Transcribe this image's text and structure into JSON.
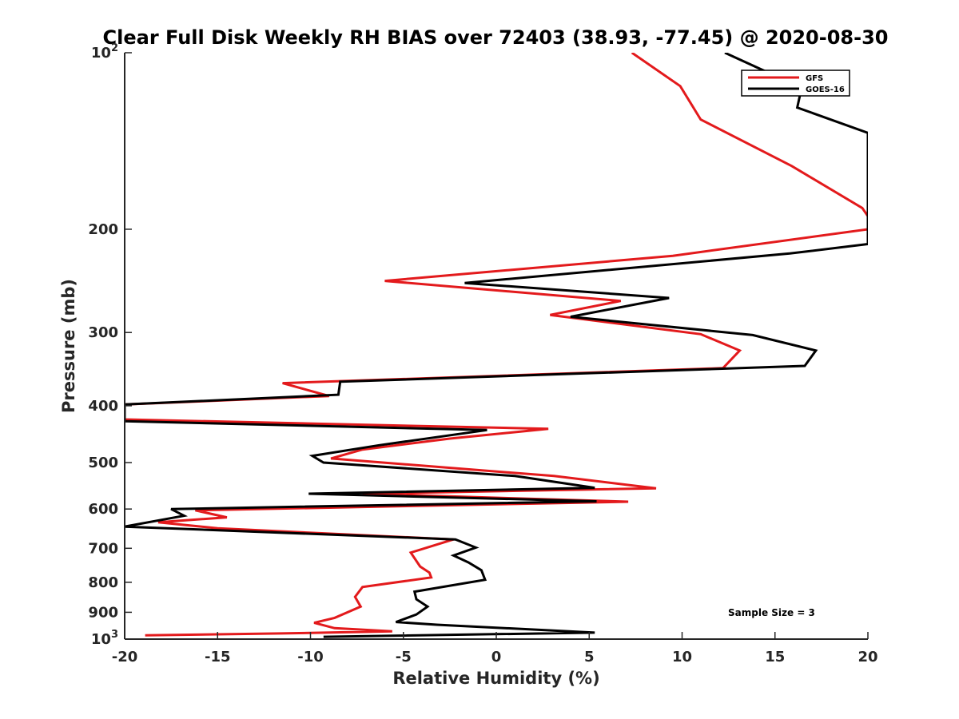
{
  "chart_data": {
    "type": "line",
    "title": "Clear Full Disk Weekly RH BIAS over 72403 (38.93, -77.45) @ 2020-08-30",
    "xlabel": "Relative Humidity (%)",
    "ylabel": "Pressure (mb)",
    "xlim": [
      -20,
      20
    ],
    "ylim": [
      100,
      1000
    ],
    "y_scale": "log",
    "y_reversed": true,
    "grid": false,
    "legend_position": "top-right",
    "x_ticks": [
      "-20",
      "-15",
      "-10",
      "-5",
      "0",
      "5",
      "10",
      "15",
      "20"
    ],
    "y_ticks": [
      {
        "value": 100,
        "base": "10",
        "exp": "2"
      },
      {
        "value": 200,
        "label": "200"
      },
      {
        "value": 300,
        "label": "300"
      },
      {
        "value": 400,
        "label": "400"
      },
      {
        "value": 500,
        "label": "500"
      },
      {
        "value": 600,
        "label": "600"
      },
      {
        "value": 700,
        "label": "700"
      },
      {
        "value": 800,
        "label": "800"
      },
      {
        "value": 900,
        "label": "900"
      },
      {
        "value": 1000,
        "base": "10",
        "exp": "3"
      }
    ],
    "annotation": "Sample Size = 3",
    "series": [
      {
        "name": "GFS",
        "color": "#e31a1c",
        "points": [
          [
            7.3,
            100
          ],
          [
            9.9,
            114
          ],
          [
            11,
            130
          ],
          [
            15.9,
            156
          ],
          [
            19.7,
            184
          ],
          [
            20,
            190
          ],
          [
            20,
            200
          ],
          [
            9.5,
            222
          ],
          [
            -6,
            245
          ],
          [
            6.7,
            265
          ],
          [
            2.9,
            280
          ],
          [
            11,
            302
          ],
          [
            13.1,
            322
          ],
          [
            12.2,
            345
          ],
          [
            -11.5,
            366
          ],
          [
            -9,
            385
          ],
          [
            -20,
            398
          ],
          [
            -20,
            422
          ],
          [
            2.8,
            438
          ],
          [
            -2.5,
            455
          ],
          [
            -7.2,
            475
          ],
          [
            -8.9,
            492
          ],
          [
            3.1,
            527
          ],
          [
            8.6,
            553
          ],
          [
            -7.2,
            565
          ],
          [
            7.1,
            583
          ],
          [
            -16.2,
            603
          ],
          [
            -14.5,
            620
          ],
          [
            -18.2,
            632
          ],
          [
            -15,
            647
          ],
          [
            -9.4,
            660
          ],
          [
            -2.3,
            676
          ],
          [
            -4.6,
            712
          ],
          [
            -4.1,
            752
          ],
          [
            -3.6,
            770
          ],
          [
            -3.5,
            785
          ],
          [
            -7.2,
            815
          ],
          [
            -7.6,
            847
          ],
          [
            -7.3,
            880
          ],
          [
            -8.7,
            920
          ],
          [
            -9.8,
            938
          ],
          [
            -8.7,
            958
          ],
          [
            -5.6,
            970
          ],
          [
            -11.6,
            978
          ],
          [
            -18.9,
            985
          ]
        ]
      },
      {
        "name": "GOES-16",
        "color": "#000000",
        "points": [
          [
            12.3,
            100
          ],
          [
            14.6,
            108
          ],
          [
            16.4,
            116
          ],
          [
            16.2,
            124
          ],
          [
            20,
            137
          ],
          [
            20,
            212
          ],
          [
            15.8,
            220
          ],
          [
            -1.7,
            247
          ],
          [
            9.3,
            262
          ],
          [
            4,
            282
          ],
          [
            13.8,
            303
          ],
          [
            17.2,
            322
          ],
          [
            16.6,
            342
          ],
          [
            -8.4,
            364
          ],
          [
            -8.5,
            383
          ],
          [
            -20,
            398
          ],
          [
            -20,
            425
          ],
          [
            -0.5,
            440
          ],
          [
            -6.3,
            467
          ],
          [
            -9.9,
            487
          ],
          [
            -9.3,
            500
          ],
          [
            1,
            527
          ],
          [
            5.3,
            552
          ],
          [
            -10.1,
            565
          ],
          [
            5.4,
            582
          ],
          [
            -17.5,
            600
          ],
          [
            -16.8,
            616
          ],
          [
            -20,
            643
          ],
          [
            -2.2,
            676
          ],
          [
            -1.1,
            698
          ],
          [
            -2.3,
            720
          ],
          [
            -1.5,
            740
          ],
          [
            -0.8,
            763
          ],
          [
            -0.6,
            792
          ],
          [
            -4.4,
            830
          ],
          [
            -4.3,
            855
          ],
          [
            -3.7,
            880
          ],
          [
            -4.3,
            908
          ],
          [
            -5.4,
            935
          ],
          [
            -3.2,
            945
          ],
          [
            5.3,
            975
          ],
          [
            -9.3,
            991
          ]
        ]
      }
    ]
  }
}
